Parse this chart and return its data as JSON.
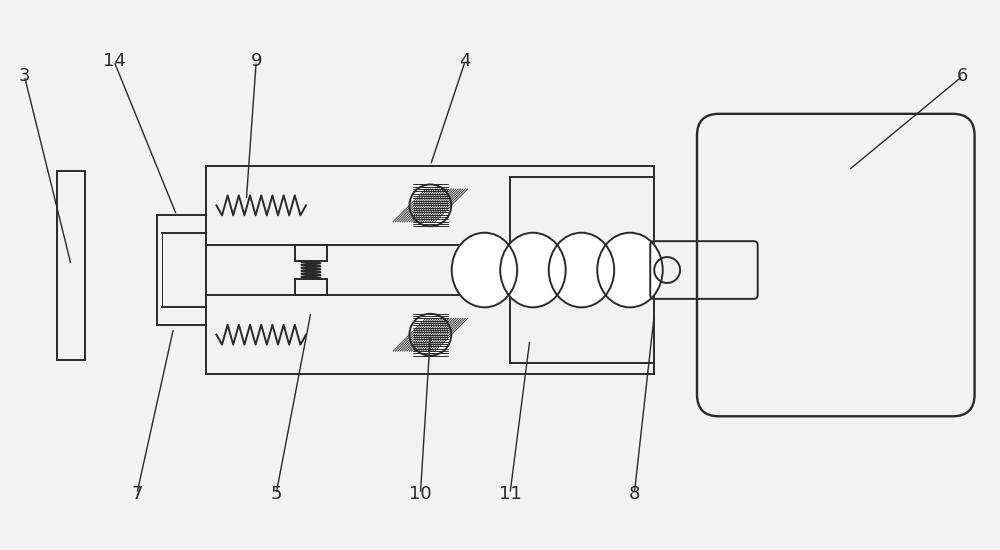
{
  "bg_color": "#f2f2f2",
  "line_color": "#2a2a2a",
  "lw": 1.4,
  "fig_w": 10.0,
  "fig_h": 5.5
}
